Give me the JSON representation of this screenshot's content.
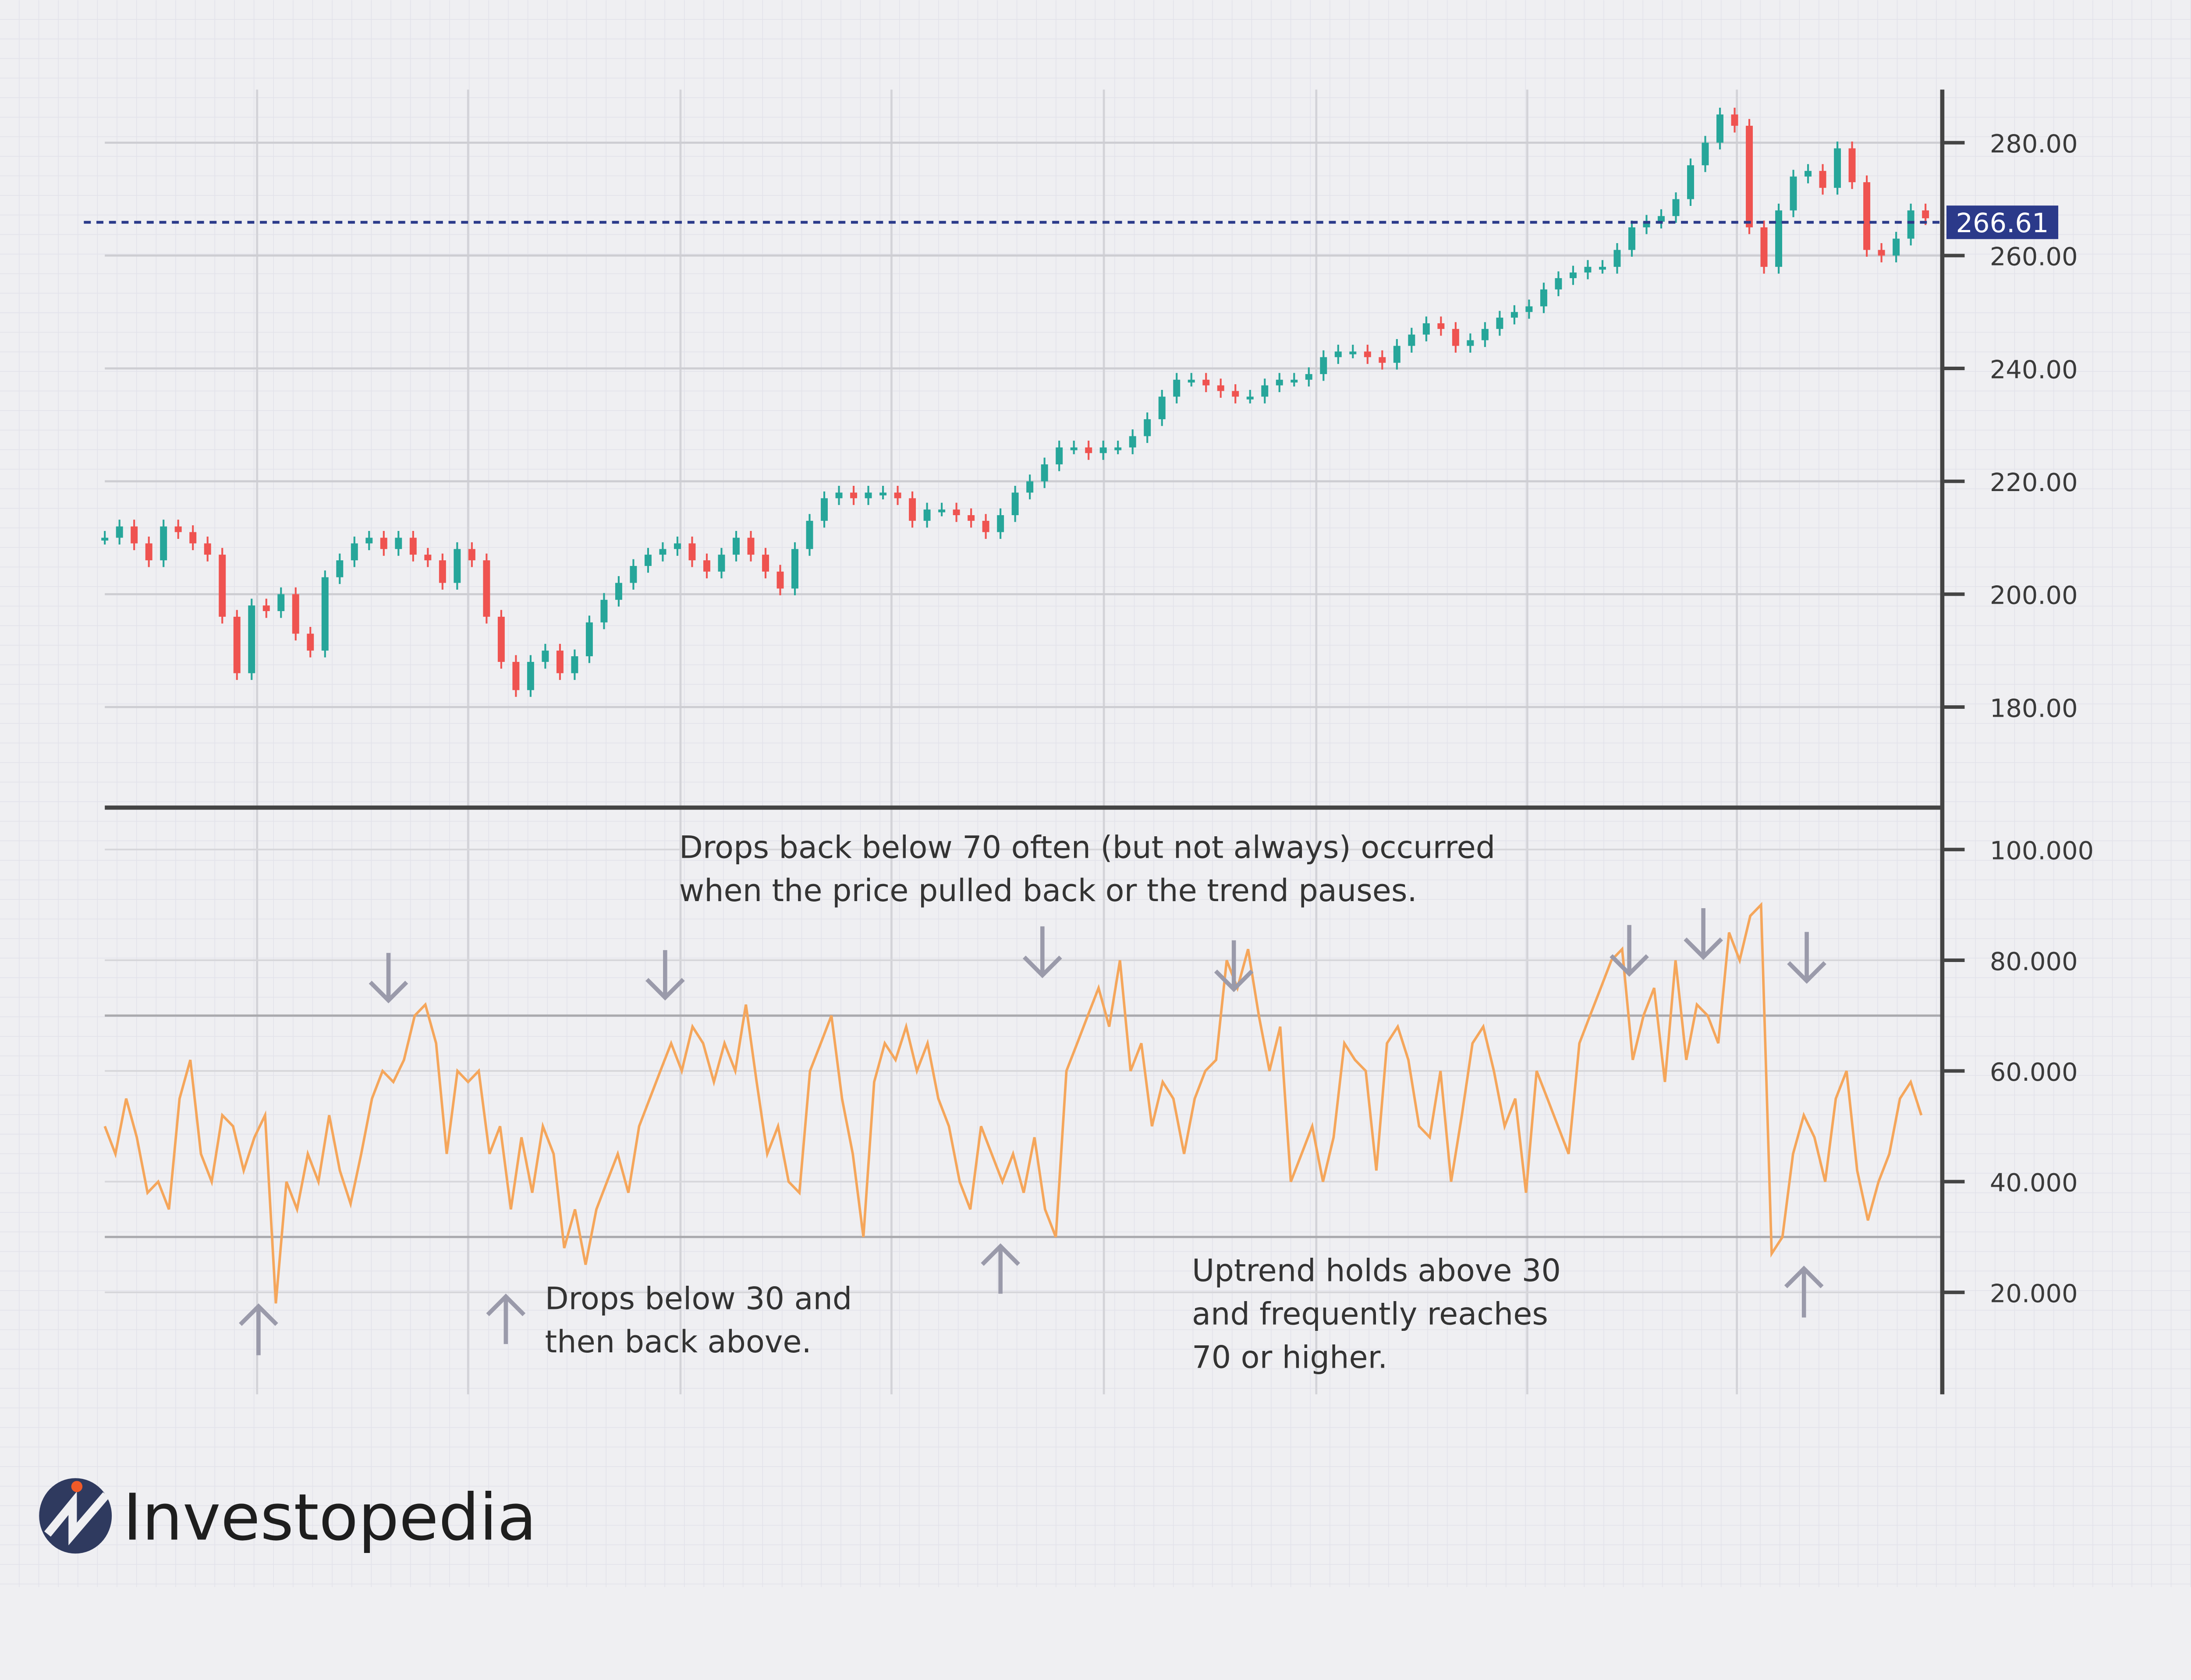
{
  "chart_data": [
    {
      "type": "candlestick",
      "title": "",
      "xlabel": "",
      "ylabel": "",
      "ylim": [
        170,
        290
      ],
      "y_ticks": [
        "180.00",
        "200.00",
        "220.00",
        "240.00",
        "260.00",
        "280.00"
      ],
      "grid": true,
      "colors": {
        "up": "#26a69a",
        "down": "#ef5350"
      },
      "last_price": {
        "value": 266.61,
        "label": "266.61",
        "color": "#2b3a8a"
      },
      "closes": [
        210,
        212,
        209,
        206,
        212,
        211,
        209,
        207,
        196,
        186,
        198,
        197,
        200,
        193,
        190,
        203,
        206,
        209,
        210,
        208,
        210,
        207,
        206,
        202,
        208,
        206,
        196,
        188,
        183,
        188,
        190,
        186,
        189,
        195,
        199,
        202,
        205,
        207,
        208,
        209,
        206,
        204,
        207,
        210,
        207,
        204,
        201,
        208,
        213,
        217,
        218,
        217,
        218,
        218,
        217,
        213,
        215,
        215,
        214,
        213,
        211,
        214,
        218,
        220,
        223,
        226,
        226,
        225,
        226,
        226,
        228,
        231,
        235,
        238,
        238,
        237,
        236,
        235,
        235,
        237,
        238,
        238,
        239,
        242,
        243,
        243,
        242,
        241,
        244,
        246,
        248,
        247,
        244,
        245,
        247,
        249,
        250,
        251,
        254,
        256,
        257,
        258,
        258,
        261,
        265,
        266,
        267,
        270,
        276,
        280,
        285,
        283,
        265,
        258,
        268,
        274,
        275,
        272,
        279,
        273,
        261,
        260,
        263,
        268,
        266.61
      ]
    },
    {
      "type": "line",
      "title": "",
      "xlabel": "",
      "ylabel": "",
      "ylim": [
        0,
        105
      ],
      "y_ticks": [
        "20.000",
        "40.000",
        "60.000",
        "80.000",
        "100.000"
      ],
      "reference_lines": [
        30,
        70
      ],
      "color": "#f5a65b",
      "values": [
        50,
        45,
        55,
        48,
        38,
        40,
        35,
        55,
        62,
        45,
        40,
        52,
        50,
        42,
        48,
        52,
        18,
        40,
        35,
        45,
        40,
        52,
        42,
        36,
        45,
        55,
        60,
        58,
        62,
        70,
        72,
        65,
        45,
        60,
        58,
        60,
        45,
        50,
        35,
        48,
        38,
        50,
        45,
        28,
        35,
        25,
        35,
        40,
        45,
        38,
        50,
        55,
        60,
        65,
        60,
        68,
        65,
        58,
        65,
        60,
        72,
        58,
        45,
        50,
        40,
        38,
        60,
        65,
        70,
        55,
        45,
        30,
        58,
        65,
        62,
        68,
        60,
        65,
        55,
        50,
        40,
        35,
        50,
        45,
        40,
        45,
        38,
        48,
        35,
        30,
        60,
        65,
        70,
        75,
        68,
        80,
        60,
        65,
        50,
        58,
        55,
        45,
        55,
        60,
        62,
        80,
        75,
        82,
        70,
        60,
        68,
        40,
        45,
        50,
        40,
        48,
        65,
        62,
        60,
        42,
        65,
        68,
        62,
        50,
        48,
        60,
        40,
        52,
        65,
        68,
        60,
        50,
        55,
        38,
        60,
        55,
        50,
        45,
        65,
        70,
        75,
        80,
        82,
        62,
        70,
        75,
        58,
        80,
        62,
        72,
        70,
        65,
        85,
        80,
        88,
        90,
        27,
        30,
        45,
        52,
        48,
        40,
        55,
        60,
        42,
        33,
        40,
        45,
        55,
        58,
        52
      ]
    }
  ],
  "annotations": {
    "top_note": [
      "Drops back below 70 often (but not always) occurred",
      "when the price pulled back or the trend pauses."
    ],
    "left_note": [
      "Drops below 30 and",
      "then back above."
    ],
    "right_note": [
      "Uptrend holds above 30",
      "and frequently reaches",
      "70 or higher."
    ]
  },
  "logo": {
    "text": "Investopedia",
    "color": "#2f3a5f",
    "dot_color": "#f05a28"
  }
}
